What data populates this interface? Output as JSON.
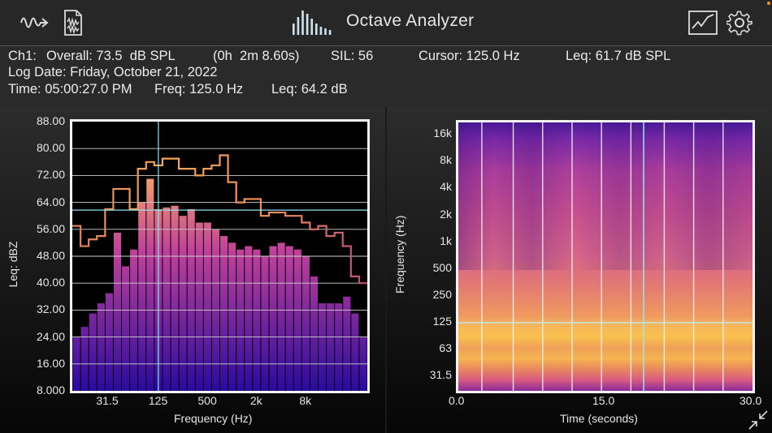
{
  "app": {
    "title": "Octave Analyzer"
  },
  "toolbar": {
    "left_icons": [
      "waveform-arrow-icon",
      "waveform-file-icon"
    ],
    "logo_icon": "octave-bars-icon",
    "right_icons": [
      "graph-icon",
      "gear-icon"
    ]
  },
  "info": {
    "channel": "Ch1:",
    "overall": "Overall: 73.5  dB SPL",
    "duration": "(0h  2m 8.60s)",
    "sil": "SIL: 56",
    "cursor": "Cursor: 125.0 Hz",
    "leq_spl": "Leq: 61.7 dB SPL",
    "log_date": "Log Date: Friday, October 21, 2022",
    "time": "Time: 05:00:27.0 PM",
    "freq": "Freq: 125.0 Hz",
    "leq_db": "Leq: 64.2 dB"
  },
  "chart_data": [
    {
      "type": "bar",
      "title": "",
      "xlabel": "Frequency (Hz)",
      "ylabel": "Leq: dBZ",
      "ylim": [
        8,
        88
      ],
      "y_ticks": [
        "88.00",
        "80.00",
        "72.00",
        "64.00",
        "56.00",
        "48.00",
        "40.00",
        "32.00",
        "24.00",
        "16.00",
        "8.000"
      ],
      "x_ticks": [
        "31.5",
        "125",
        "500",
        "2k",
        "8k"
      ],
      "cursor_x_band": 10,
      "cursor_y": 61.7,
      "grid": true,
      "bar_colors": {
        "top": "#f6a06a",
        "mid": "#c0409a",
        "bottom": "#2a0aa0"
      },
      "series": [
        {
          "name": "",
          "kind": "bars",
          "values": [
            24,
            27,
            31,
            34,
            37,
            55,
            45,
            50,
            64,
            71,
            62,
            62.5,
            63,
            60,
            62,
            58,
            58,
            56,
            54,
            52,
            50,
            51,
            50,
            48,
            51,
            52,
            51,
            50,
            48,
            42,
            34,
            34,
            34,
            36,
            31,
            24
          ]
        },
        {
          "name": "",
          "kind": "max-step",
          "values": [
            57,
            51,
            53,
            54,
            62,
            68,
            68,
            62,
            74,
            76,
            75,
            77,
            77,
            74,
            74,
            72,
            74,
            75,
            78,
            70,
            64,
            65,
            65,
            60,
            61,
            61,
            60,
            60,
            58,
            56,
            57,
            54,
            55,
            51,
            42,
            40
          ]
        }
      ]
    },
    {
      "type": "heatmap",
      "title": "",
      "xlabel": "Time (seconds)",
      "ylabel": "Frequency (Hz)",
      "xlim": [
        0,
        30
      ],
      "x_ticks": [
        "0.0",
        "15.0",
        "30.0"
      ],
      "y_ticks": [
        "16k",
        "8k",
        "4k",
        "2k",
        "1k",
        "500",
        "250",
        "125",
        "63",
        "31.5"
      ],
      "cursor_time": 18.9,
      "cursor_freq": "125",
      "time_gridlines": [
        2.4,
        5.6,
        8.6,
        11.6,
        14.6,
        17.6,
        21.0,
        24.0,
        27.0
      ],
      "colormap": [
        "#2a0a6a",
        "#6a1aa0",
        "#a8329a",
        "#d6567a",
        "#ee8a58",
        "#f8c24c"
      ]
    }
  ]
}
